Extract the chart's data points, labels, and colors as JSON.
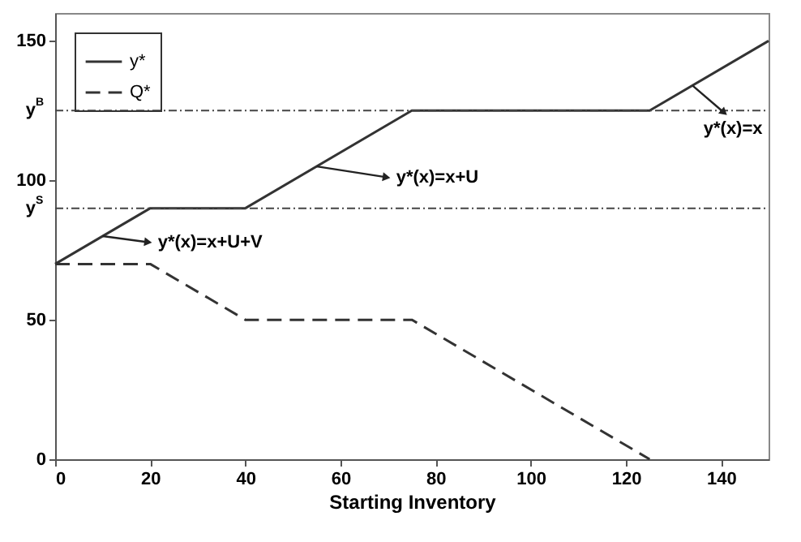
{
  "chart_data": {
    "type": "line",
    "xlabel": "Starting Inventory",
    "xlim": [
      0,
      150
    ],
    "xticks": [
      0,
      20,
      40,
      60,
      80,
      100,
      120,
      140
    ],
    "ylim": [
      0,
      160
    ],
    "yticks": [
      0,
      50,
      100,
      150
    ],
    "series": [
      {
        "name": "y*",
        "color": "#333333",
        "line_style": "solid",
        "x": [
          0,
          20,
          40,
          75,
          125,
          150
        ],
        "values": [
          70,
          90,
          90,
          125,
          125,
          150
        ]
      },
      {
        "name": "Q*",
        "color": "#333333",
        "line_style": "dashed",
        "x": [
          0,
          20,
          40,
          75,
          125
        ],
        "values": [
          70,
          70,
          50,
          50,
          0
        ]
      }
    ],
    "ref_lines": [
      {
        "axis": "y",
        "value": 125,
        "label": "y$^{B}$",
        "line_style": "dotted"
      },
      {
        "axis": "y",
        "value": 90,
        "label": "y$^{S}$",
        "line_style": "dotted"
      }
    ],
    "annotations": [
      {
        "text": "y*(x)=x+U+V",
        "x": 10,
        "y": 80
      },
      {
        "text": "y*(x)=x+U",
        "x": 55,
        "y": 105
      },
      {
        "text": "y*(x)=x",
        "x": 134,
        "y": 134
      }
    ],
    "legend": "top left",
    "grid": false,
    "marker": "none"
  }
}
